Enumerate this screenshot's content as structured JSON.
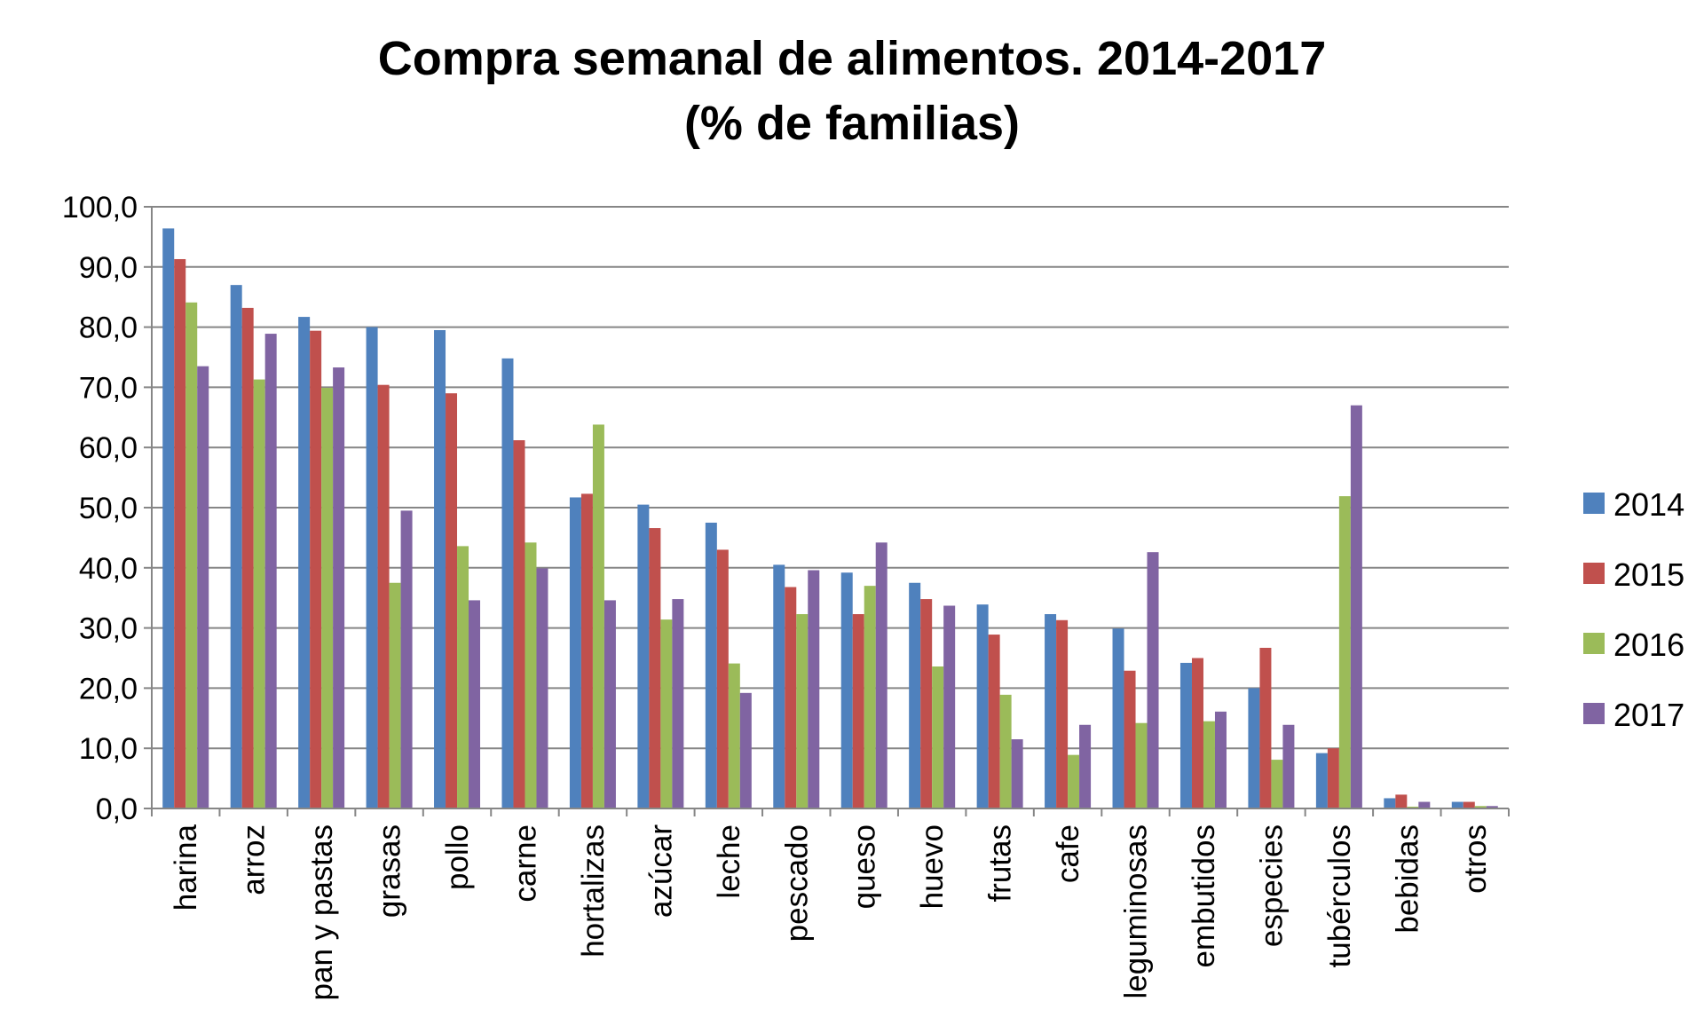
{
  "chart_data": {
    "type": "bar",
    "title": [
      "Compra semanal de alimentos. 2014-2017",
      "(% de familias)"
    ],
    "xlabel": "",
    "ylabel": "",
    "ylim": [
      0,
      100
    ],
    "yticks": [
      "0,0",
      "10,0",
      "20,0",
      "30,0",
      "40,0",
      "50,0",
      "60,0",
      "70,0",
      "80,0",
      "90,0",
      "100,0"
    ],
    "grid": true,
    "legend_position": "right",
    "categories": [
      "harina",
      "arroz",
      "pan y pastas",
      "grasas",
      "pollo",
      "carne",
      "hortalizas",
      "azúcar",
      "leche",
      "pescado",
      "queso",
      "huevo",
      "frutas",
      "cafe",
      "leguminosas",
      "embutidos",
      "especies",
      "tubérculos",
      "bebidas",
      "otros"
    ],
    "series": [
      {
        "name": "2014",
        "color": "#4F81BD",
        "values": [
          96.4,
          87.0,
          81.7,
          80.0,
          79.5,
          74.8,
          51.7,
          50.5,
          47.5,
          40.5,
          39.2,
          37.5,
          33.9,
          32.3,
          29.9,
          24.2,
          20.0,
          9.2,
          1.7,
          1.1
        ]
      },
      {
        "name": "2015",
        "color": "#C0504D",
        "values": [
          91.3,
          83.2,
          79.4,
          70.4,
          69.0,
          61.2,
          52.3,
          46.6,
          43.0,
          36.8,
          32.3,
          34.8,
          28.9,
          31.3,
          22.9,
          25.0,
          26.7,
          10.0,
          2.3,
          1.1
        ]
      },
      {
        "name": "2016",
        "color": "#9BBB59",
        "values": [
          84.1,
          71.3,
          69.9,
          37.5,
          43.6,
          44.2,
          63.8,
          31.4,
          24.1,
          32.3,
          37.0,
          23.6,
          18.9,
          8.9,
          14.2,
          14.5,
          8.1,
          51.9,
          0.3,
          0.4
        ]
      },
      {
        "name": "2017",
        "color": "#8064A2",
        "values": [
          73.5,
          78.9,
          73.3,
          49.5,
          34.6,
          39.9,
          34.6,
          34.8,
          19.2,
          39.6,
          44.2,
          33.7,
          11.5,
          13.9,
          42.6,
          16.1,
          13.9,
          67.0,
          1.1,
          0.4
        ]
      }
    ]
  }
}
